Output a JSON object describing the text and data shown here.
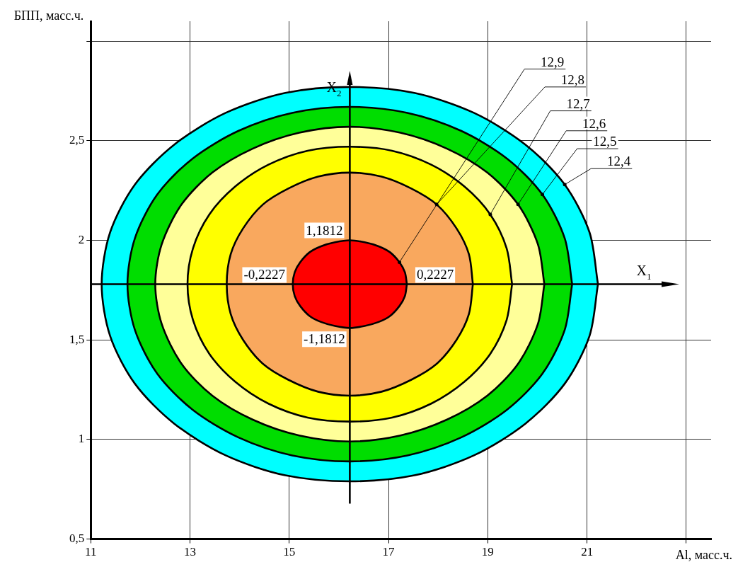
{
  "chart_data": {
    "type": "area",
    "xlabel": "Al, масс.ч.",
    "ylabel": "БПП, масс.ч.",
    "xlim": [
      11,
      23.5
    ],
    "xticks": [
      11,
      13,
      15,
      17,
      19,
      21,
      {
        "value": 23,
        "label": null
      }
    ],
    "ylim": [
      0.5,
      3.1
    ],
    "yticks": [
      {
        "value": 0.5,
        "label": "0,5"
      },
      1,
      {
        "value": 1.5,
        "label": "1,5"
      },
      2,
      {
        "value": 2.5,
        "label": "2,5"
      },
      {
        "value": 3,
        "label": null
      }
    ],
    "grid": true,
    "legend": false,
    "marker": "none",
    "line_style": "solid",
    "series": [
      {
        "color": "#00ffff",
        "x": [
          21.22,
          21.05,
          20.55,
          19.76,
          18.72,
          17.52,
          16.22,
          14.92,
          13.72,
          12.68,
          11.89,
          11.39,
          11.22,
          11.39,
          11.89,
          12.68,
          13.72,
          14.92,
          16.22,
          17.52,
          18.72,
          19.76,
          20.55,
          21.05,
          21.22
        ],
        "values": [
          1.78,
          2.04,
          2.28,
          2.48,
          2.64,
          2.74,
          2.77,
          2.74,
          2.64,
          2.48,
          2.28,
          2.04,
          1.78,
          1.52,
          1.28,
          1.08,
          0.92,
          0.82,
          0.79,
          0.82,
          0.92,
          1.08,
          1.28,
          1.52,
          1.78
        ]
      },
      {
        "color": "#00dd00",
        "x": [
          20.7,
          20.55,
          20.1,
          19.39,
          18.46,
          17.38,
          16.22,
          15.06,
          13.98,
          13.05,
          12.34,
          11.89,
          11.74,
          11.89,
          12.34,
          13.05,
          13.98,
          15.06,
          16.22,
          17.38,
          18.46,
          19.39,
          20.1,
          20.55,
          20.7
        ],
        "values": [
          1.78,
          2.01,
          2.23,
          2.41,
          2.55,
          2.64,
          2.67,
          2.64,
          2.55,
          2.41,
          2.23,
          2.01,
          1.78,
          1.55,
          1.33,
          1.15,
          1.01,
          0.92,
          0.89,
          0.92,
          1.01,
          1.15,
          1.33,
          1.55,
          1.78
        ]
      },
      {
        "color": "#ffff99",
        "x": [
          20.14,
          20.01,
          19.61,
          18.99,
          18.18,
          17.24,
          16.22,
          15.2,
          14.26,
          13.45,
          12.83,
          12.43,
          12.3,
          12.43,
          12.83,
          13.45,
          14.26,
          15.2,
          16.22,
          17.24,
          18.18,
          18.99,
          19.61,
          20.01,
          20.14
        ],
        "values": [
          1.78,
          1.98,
          2.18,
          2.34,
          2.46,
          2.54,
          2.57,
          2.54,
          2.46,
          2.34,
          2.18,
          1.98,
          1.78,
          1.58,
          1.38,
          1.22,
          1.1,
          1.02,
          0.99,
          1.02,
          1.1,
          1.22,
          1.38,
          1.58,
          1.78
        ]
      },
      {
        "color": "#ffff00",
        "x": [
          19.49,
          19.38,
          19.05,
          18.53,
          17.86,
          17.07,
          16.22,
          15.37,
          14.58,
          13.91,
          13.39,
          13.06,
          12.95,
          13.06,
          13.39,
          13.91,
          14.58,
          15.37,
          16.22,
          17.07,
          17.86,
          18.53,
          19.05,
          19.38,
          19.49
        ],
        "values": [
          1.78,
          1.96,
          2.13,
          2.27,
          2.38,
          2.45,
          2.47,
          2.45,
          2.38,
          2.27,
          2.13,
          1.96,
          1.78,
          1.6,
          1.43,
          1.29,
          1.18,
          1.11,
          1.09,
          1.11,
          1.18,
          1.29,
          1.43,
          1.6,
          1.78
        ]
      },
      {
        "color": "#f9a85e",
        "x": [
          18.7,
          18.62,
          18.37,
          17.97,
          17.46,
          16.86,
          16.22,
          15.58,
          14.98,
          14.47,
          14.07,
          13.82,
          13.74,
          13.82,
          14.07,
          14.47,
          14.98,
          15.58,
          16.22,
          16.86,
          17.46,
          17.97,
          18.37,
          18.62,
          18.7
        ],
        "values": [
          1.78,
          1.93,
          2.06,
          2.18,
          2.26,
          2.32,
          2.34,
          2.32,
          2.26,
          2.18,
          2.06,
          1.93,
          1.78,
          1.63,
          1.5,
          1.38,
          1.3,
          1.24,
          1.22,
          1.24,
          1.3,
          1.38,
          1.5,
          1.63,
          1.78
        ]
      },
      {
        "color": "#ff0000",
        "x": [
          17.37,
          17.33,
          17.22,
          17.03,
          16.8,
          16.52,
          16.22,
          15.92,
          15.64,
          15.41,
          15.22,
          15.11,
          15.07,
          15.11,
          15.22,
          15.41,
          15.64,
          15.92,
          16.22,
          16.52,
          16.8,
          17.03,
          17.22,
          17.33,
          17.37
        ],
        "values": [
          1.78,
          1.84,
          1.89,
          1.94,
          1.97,
          1.99,
          2.0,
          1.99,
          1.97,
          1.94,
          1.89,
          1.84,
          1.78,
          1.72,
          1.67,
          1.62,
          1.59,
          1.57,
          1.56,
          1.57,
          1.59,
          1.62,
          1.67,
          1.72,
          1.78
        ]
      }
    ],
    "ref_lines": [
      {
        "axis": "y",
        "value": 1.78,
        "label": "X$_{1}$"
      },
      {
        "axis": "x",
        "value": 16.22,
        "label": "X$_{2}$"
      }
    ],
    "annotations": [
      {
        "text": "12,9",
        "x": 17.22,
        "y": 1.89
      },
      {
        "text": "12,8",
        "x": 17.97,
        "y": 2.18
      },
      {
        "text": "12,7",
        "x": 19.05,
        "y": 2.13
      },
      {
        "text": "12,6",
        "x": 19.61,
        "y": 2.18
      },
      {
        "text": "12,5",
        "x": 20.1,
        "y": 2.23
      },
      {
        "text": "12,4",
        "x": 20.55,
        "y": 2.28
      },
      {
        "text": "1,1812",
        "x": 16.22,
        "y": 2.0
      },
      {
        "text": "-1,1812",
        "x": 16.22,
        "y": 1.56
      },
      {
        "text": "-0,2227",
        "x": 15.07,
        "y": 1.78
      },
      {
        "text": "0,2227",
        "x": 17.37,
        "y": 1.78
      }
    ]
  }
}
